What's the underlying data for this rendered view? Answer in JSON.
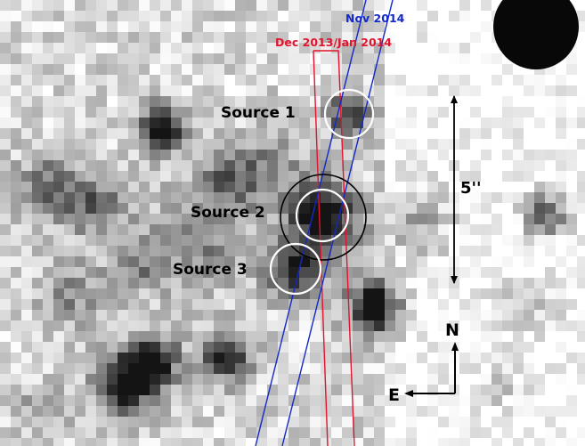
{
  "image": {
    "kind": "grayscale astronomical pixelated image",
    "colors": {
      "background": "#ffffff",
      "slit_red": "#e0142c",
      "slit_blue": "#1428c8",
      "circle_white": "#ffffff",
      "circle_black": "#000000",
      "text": "#000000"
    }
  },
  "slits": {
    "dec_label": "Dec 2013/Jan 2014",
    "nov_label": "Nov 2014"
  },
  "sources": [
    {
      "label": "Source 1"
    },
    {
      "label": "Source 2"
    },
    {
      "label": "Source 3"
    }
  ],
  "scale": {
    "label": "5''"
  },
  "compass": {
    "north": "N",
    "east": "E"
  }
}
